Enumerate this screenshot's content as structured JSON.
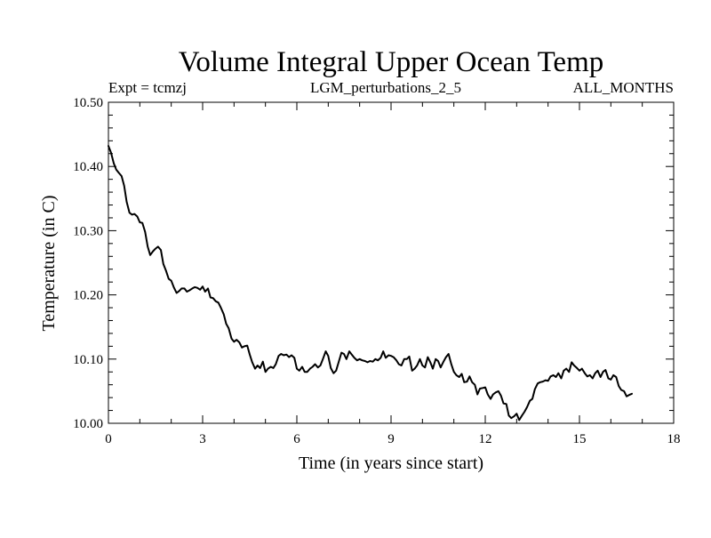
{
  "chart_data": {
    "type": "line",
    "title": "Volume Integral Upper Ocean Temp",
    "subtitle_left": "Expt = tcmzj",
    "subtitle_center": "LGM_perturbations_2_5",
    "subtitle_right": "ALL_MONTHS",
    "xlabel": "Time (in years since start)",
    "ylabel": "Temperature (in C)",
    "xlim": [
      0,
      18
    ],
    "ylim": [
      10.0,
      10.5
    ],
    "xticks": [
      0,
      3,
      6,
      9,
      12,
      15,
      18
    ],
    "xtick_labels": [
      "0",
      "3",
      "6",
      "9",
      "12",
      "15",
      "18"
    ],
    "yticks": [
      10.0,
      10.1,
      10.2,
      10.3,
      10.4,
      10.5
    ],
    "ytick_labels": [
      "10.00",
      "10.10",
      "10.20",
      "10.30",
      "10.40",
      "10.50"
    ],
    "grid": false,
    "series": [
      {
        "name": "volume integral upper ocean temp",
        "color": "#000000",
        "x": [
          0.0,
          0.08,
          0.17,
          0.25,
          0.33,
          0.42,
          0.5,
          0.58,
          0.67,
          0.75,
          0.83,
          0.92,
          1.0,
          1.08,
          1.17,
          1.25,
          1.33,
          1.42,
          1.5,
          1.58,
          1.67,
          1.75,
          1.83,
          1.92,
          2.0,
          2.08,
          2.17,
          2.25,
          2.33,
          2.42,
          2.5,
          2.58,
          2.67,
          2.75,
          2.83,
          2.92,
          3.0,
          3.08,
          3.17,
          3.25,
          3.33,
          3.42,
          3.5,
          3.58,
          3.67,
          3.75,
          3.83,
          3.92,
          4.0,
          4.08,
          4.17,
          4.25,
          4.33,
          4.42,
          4.5,
          4.58,
          4.67,
          4.75,
          4.83,
          4.92,
          5.0,
          5.08,
          5.17,
          5.25,
          5.33,
          5.42,
          5.5,
          5.58,
          5.67,
          5.75,
          5.83,
          5.92,
          6.0,
          6.08,
          6.17,
          6.25,
          6.33,
          6.42,
          6.5,
          6.58,
          6.67,
          6.75,
          6.83,
          6.92,
          7.0,
          7.08,
          7.17,
          7.25,
          7.33,
          7.42,
          7.5,
          7.58,
          7.67,
          7.75,
          7.83,
          7.92,
          8.0,
          8.08,
          8.17,
          8.25,
          8.33,
          8.42,
          8.5,
          8.58,
          8.67,
          8.75,
          8.83,
          8.92,
          9.0,
          9.08,
          9.17,
          9.25,
          9.33,
          9.42,
          9.5,
          9.58,
          9.67,
          9.75,
          9.83,
          9.92,
          10.0,
          10.08,
          10.17,
          10.25,
          10.33,
          10.42,
          10.5,
          10.58,
          10.67,
          10.75,
          10.83,
          10.92,
          11.0,
          11.08,
          11.17,
          11.25,
          11.33,
          11.42,
          11.5,
          11.58,
          11.67,
          11.75,
          11.83,
          11.92,
          12.0,
          12.08,
          12.17,
          12.25,
          12.33,
          12.42,
          12.5,
          12.58,
          12.67,
          12.75,
          12.83,
          12.92,
          13.0,
          13.08,
          13.17,
          13.25,
          13.33,
          13.42,
          13.5,
          13.58,
          13.67,
          13.75,
          13.83,
          13.92,
          14.0,
          14.08,
          14.17,
          14.25,
          14.33,
          14.42,
          14.5,
          14.58,
          14.67,
          14.75,
          14.83,
          14.92,
          15.0,
          15.08,
          15.17,
          15.25,
          15.33,
          15.42,
          15.5,
          15.58,
          15.67,
          15.75,
          15.83,
          15.92,
          16.0,
          16.08,
          16.17,
          16.25,
          16.33,
          16.42,
          16.5,
          16.58,
          16.67
        ],
        "y": [
          10.432,
          10.422,
          10.405,
          10.395,
          10.39,
          10.385,
          10.37,
          10.345,
          10.328,
          10.325,
          10.326,
          10.322,
          10.313,
          10.312,
          10.298,
          10.275,
          10.262,
          10.268,
          10.272,
          10.275,
          10.27,
          10.248,
          10.238,
          10.225,
          10.222,
          10.212,
          10.203,
          10.206,
          10.21,
          10.21,
          10.205,
          10.207,
          10.21,
          10.212,
          10.211,
          10.208,
          10.213,
          10.205,
          10.21,
          10.196,
          10.195,
          10.19,
          10.188,
          10.18,
          10.17,
          10.155,
          10.148,
          10.132,
          10.127,
          10.13,
          10.126,
          10.118,
          10.12,
          10.121,
          10.107,
          10.095,
          10.085,
          10.09,
          10.086,
          10.096,
          10.08,
          10.085,
          10.088,
          10.086,
          10.092,
          10.105,
          10.108,
          10.106,
          10.107,
          10.103,
          10.106,
          10.102,
          10.085,
          10.082,
          10.088,
          10.08,
          10.08,
          10.085,
          10.088,
          10.092,
          10.087,
          10.09,
          10.1,
          10.112,
          10.105,
          10.086,
          10.078,
          10.082,
          10.095,
          10.11,
          10.108,
          10.1,
          10.112,
          10.107,
          10.102,
          10.098,
          10.1,
          10.098,
          10.097,
          10.095,
          10.097,
          10.096,
          10.1,
          10.098,
          10.102,
          10.112,
          10.102,
          10.106,
          10.105,
          10.103,
          10.098,
          10.092,
          10.09,
          10.1,
          10.1,
          10.104,
          10.082,
          10.085,
          10.09,
          10.1,
          10.09,
          10.087,
          10.103,
          10.095,
          10.085,
          10.1,
          10.097,
          10.087,
          10.096,
          10.103,
          10.108,
          10.092,
          10.08,
          10.075,
          10.072,
          10.077,
          10.064,
          10.065,
          10.073,
          10.064,
          10.06,
          10.045,
          10.054,
          10.055,
          10.056,
          10.045,
          10.038,
          10.045,
          10.048,
          10.05,
          10.043,
          10.031,
          10.03,
          10.012,
          10.008,
          10.011,
          10.015,
          10.005,
          10.012,
          10.018,
          10.025,
          10.035,
          10.038,
          10.053,
          10.062,
          10.064,
          10.065,
          10.067,
          10.066,
          10.073,
          10.075,
          10.072,
          10.078,
          10.07,
          10.082,
          10.085,
          10.08,
          10.095,
          10.09,
          10.086,
          10.082,
          10.085,
          10.078,
          10.073,
          10.075,
          10.07,
          10.078,
          10.082,
          10.072,
          10.08,
          10.083,
          10.07,
          10.068,
          10.075,
          10.072,
          10.058,
          10.052,
          10.05,
          10.042,
          10.044,
          10.046
        ]
      }
    ]
  }
}
